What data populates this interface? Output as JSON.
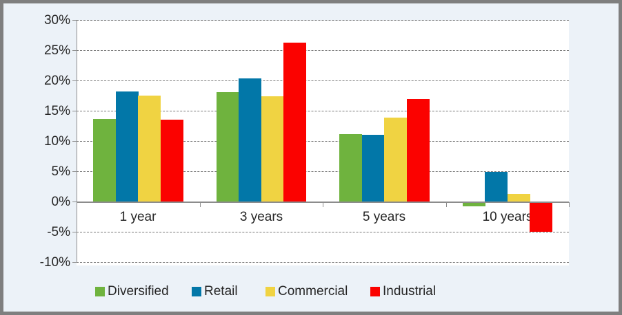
{
  "chart": {
    "background_color": "#ecf2f8",
    "border_color": "#7f7f7f",
    "plot_background_color": "#ffffff",
    "gridline_color": "#737373",
    "axis_color": "#8c8c8c",
    "text_color": "#262626"
  },
  "chart_data": {
    "type": "bar",
    "title": "",
    "xlabel": "",
    "ylabel": "",
    "categories": [
      "1 year",
      "3 years",
      "5 years",
      "10 years"
    ],
    "series": [
      {
        "name": "Diversified",
        "color": "#6fb33e",
        "values": [
          13.8,
          18.2,
          11.3,
          -0.6
        ]
      },
      {
        "name": "Retail",
        "color": "#0277a8",
        "values": [
          18.3,
          20.5,
          11.1,
          5.0
        ]
      },
      {
        "name": "Commercial",
        "color": "#f0d342",
        "values": [
          17.6,
          17.5,
          14.0,
          1.4
        ]
      },
      {
        "name": "Industrial",
        "color": "#fb0200",
        "values": [
          13.6,
          26.4,
          17.0,
          -4.8
        ]
      }
    ],
    "ylim": [
      -10,
      30
    ],
    "ytick_step": 5,
    "yticks": [
      {
        "label": "30%",
        "value": 30
      },
      {
        "label": "25%",
        "value": 25
      },
      {
        "label": "20%",
        "value": 20
      },
      {
        "label": "15%",
        "value": 15
      },
      {
        "label": "10%",
        "value": 10
      },
      {
        "label": "5%",
        "value": 5
      },
      {
        "label": "0%",
        "value": 0
      },
      {
        "label": "-5%",
        "value": -5
      },
      {
        "label": "-10%",
        "value": -10
      }
    ],
    "grid": "horizontal-dashed",
    "legend_position": "bottom",
    "legend_item_lefts": [
      133,
      273,
      380,
      532
    ]
  }
}
